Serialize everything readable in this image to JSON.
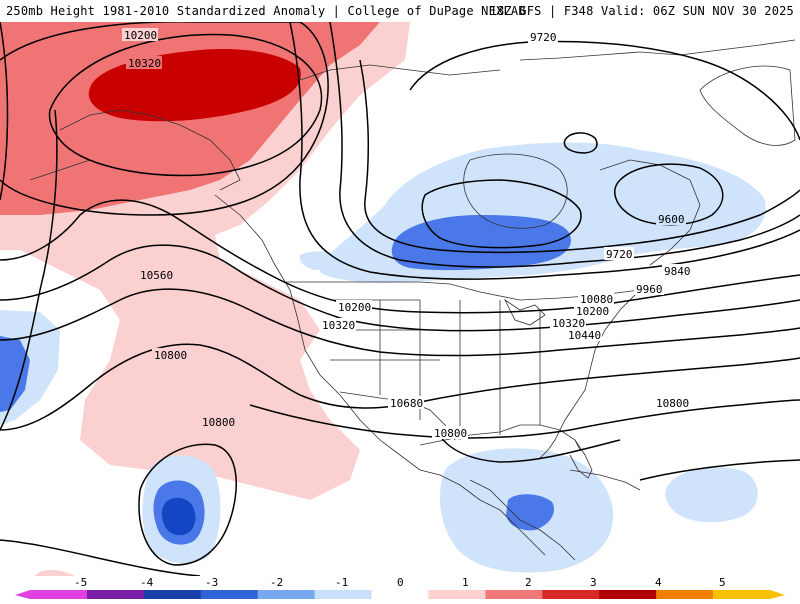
{
  "header": {
    "title_left": "250mb Height 1981-2010 Standardized Anomaly | College of DuPage NEXLAB",
    "title_right": "18Z GFS | F348 Valid: 06Z SUN NOV 30 2025"
  },
  "contours": [
    {
      "label": "10200",
      "pos": "top"
    },
    {
      "label": "10320",
      "pos": "top"
    },
    {
      "label": "9720",
      "pos": "top"
    },
    {
      "label": "9600",
      "pos": "east"
    },
    {
      "label": "9720",
      "pos": "east"
    },
    {
      "label": "9840",
      "pos": "east"
    },
    {
      "label": "9960",
      "pos": "east"
    },
    {
      "label": "10080",
      "pos": "east"
    },
    {
      "label": "10200",
      "pos": "east"
    },
    {
      "label": "10320",
      "pos": "east"
    },
    {
      "label": "10440",
      "pos": "east"
    },
    {
      "label": "10560",
      "pos": "west"
    },
    {
      "label": "10200",
      "pos": "central"
    },
    {
      "label": "10320",
      "pos": "central"
    },
    {
      "label": "10800",
      "pos": "west"
    },
    {
      "label": "10800",
      "pos": "south"
    },
    {
      "label": "10680",
      "pos": "central"
    },
    {
      "label": "10800",
      "pos": "central"
    },
    {
      "label": "10800",
      "pos": "east"
    }
  ],
  "colorbar": {
    "ticks": [
      "-5",
      "-4",
      "-3",
      "-2",
      "-1",
      "0",
      "1",
      "2",
      "3",
      "4",
      "5"
    ],
    "colors": [
      "#e040e0",
      "#7a1fa8",
      "#1840a8",
      "#2e64d8",
      "#78a8f0",
      "#c8e0fc",
      "#ffffff",
      "#ffd0d0",
      "#f07878",
      "#d82828",
      "#b00000",
      "#f08000",
      "#f8c000"
    ]
  },
  "colors": {
    "neg1": "#cfe3fb",
    "neg2": "#4a78e8",
    "neg3": "#1446c4",
    "pos1": "#fbd0d0",
    "pos2": "#f07474",
    "pos3": "#c80000"
  }
}
